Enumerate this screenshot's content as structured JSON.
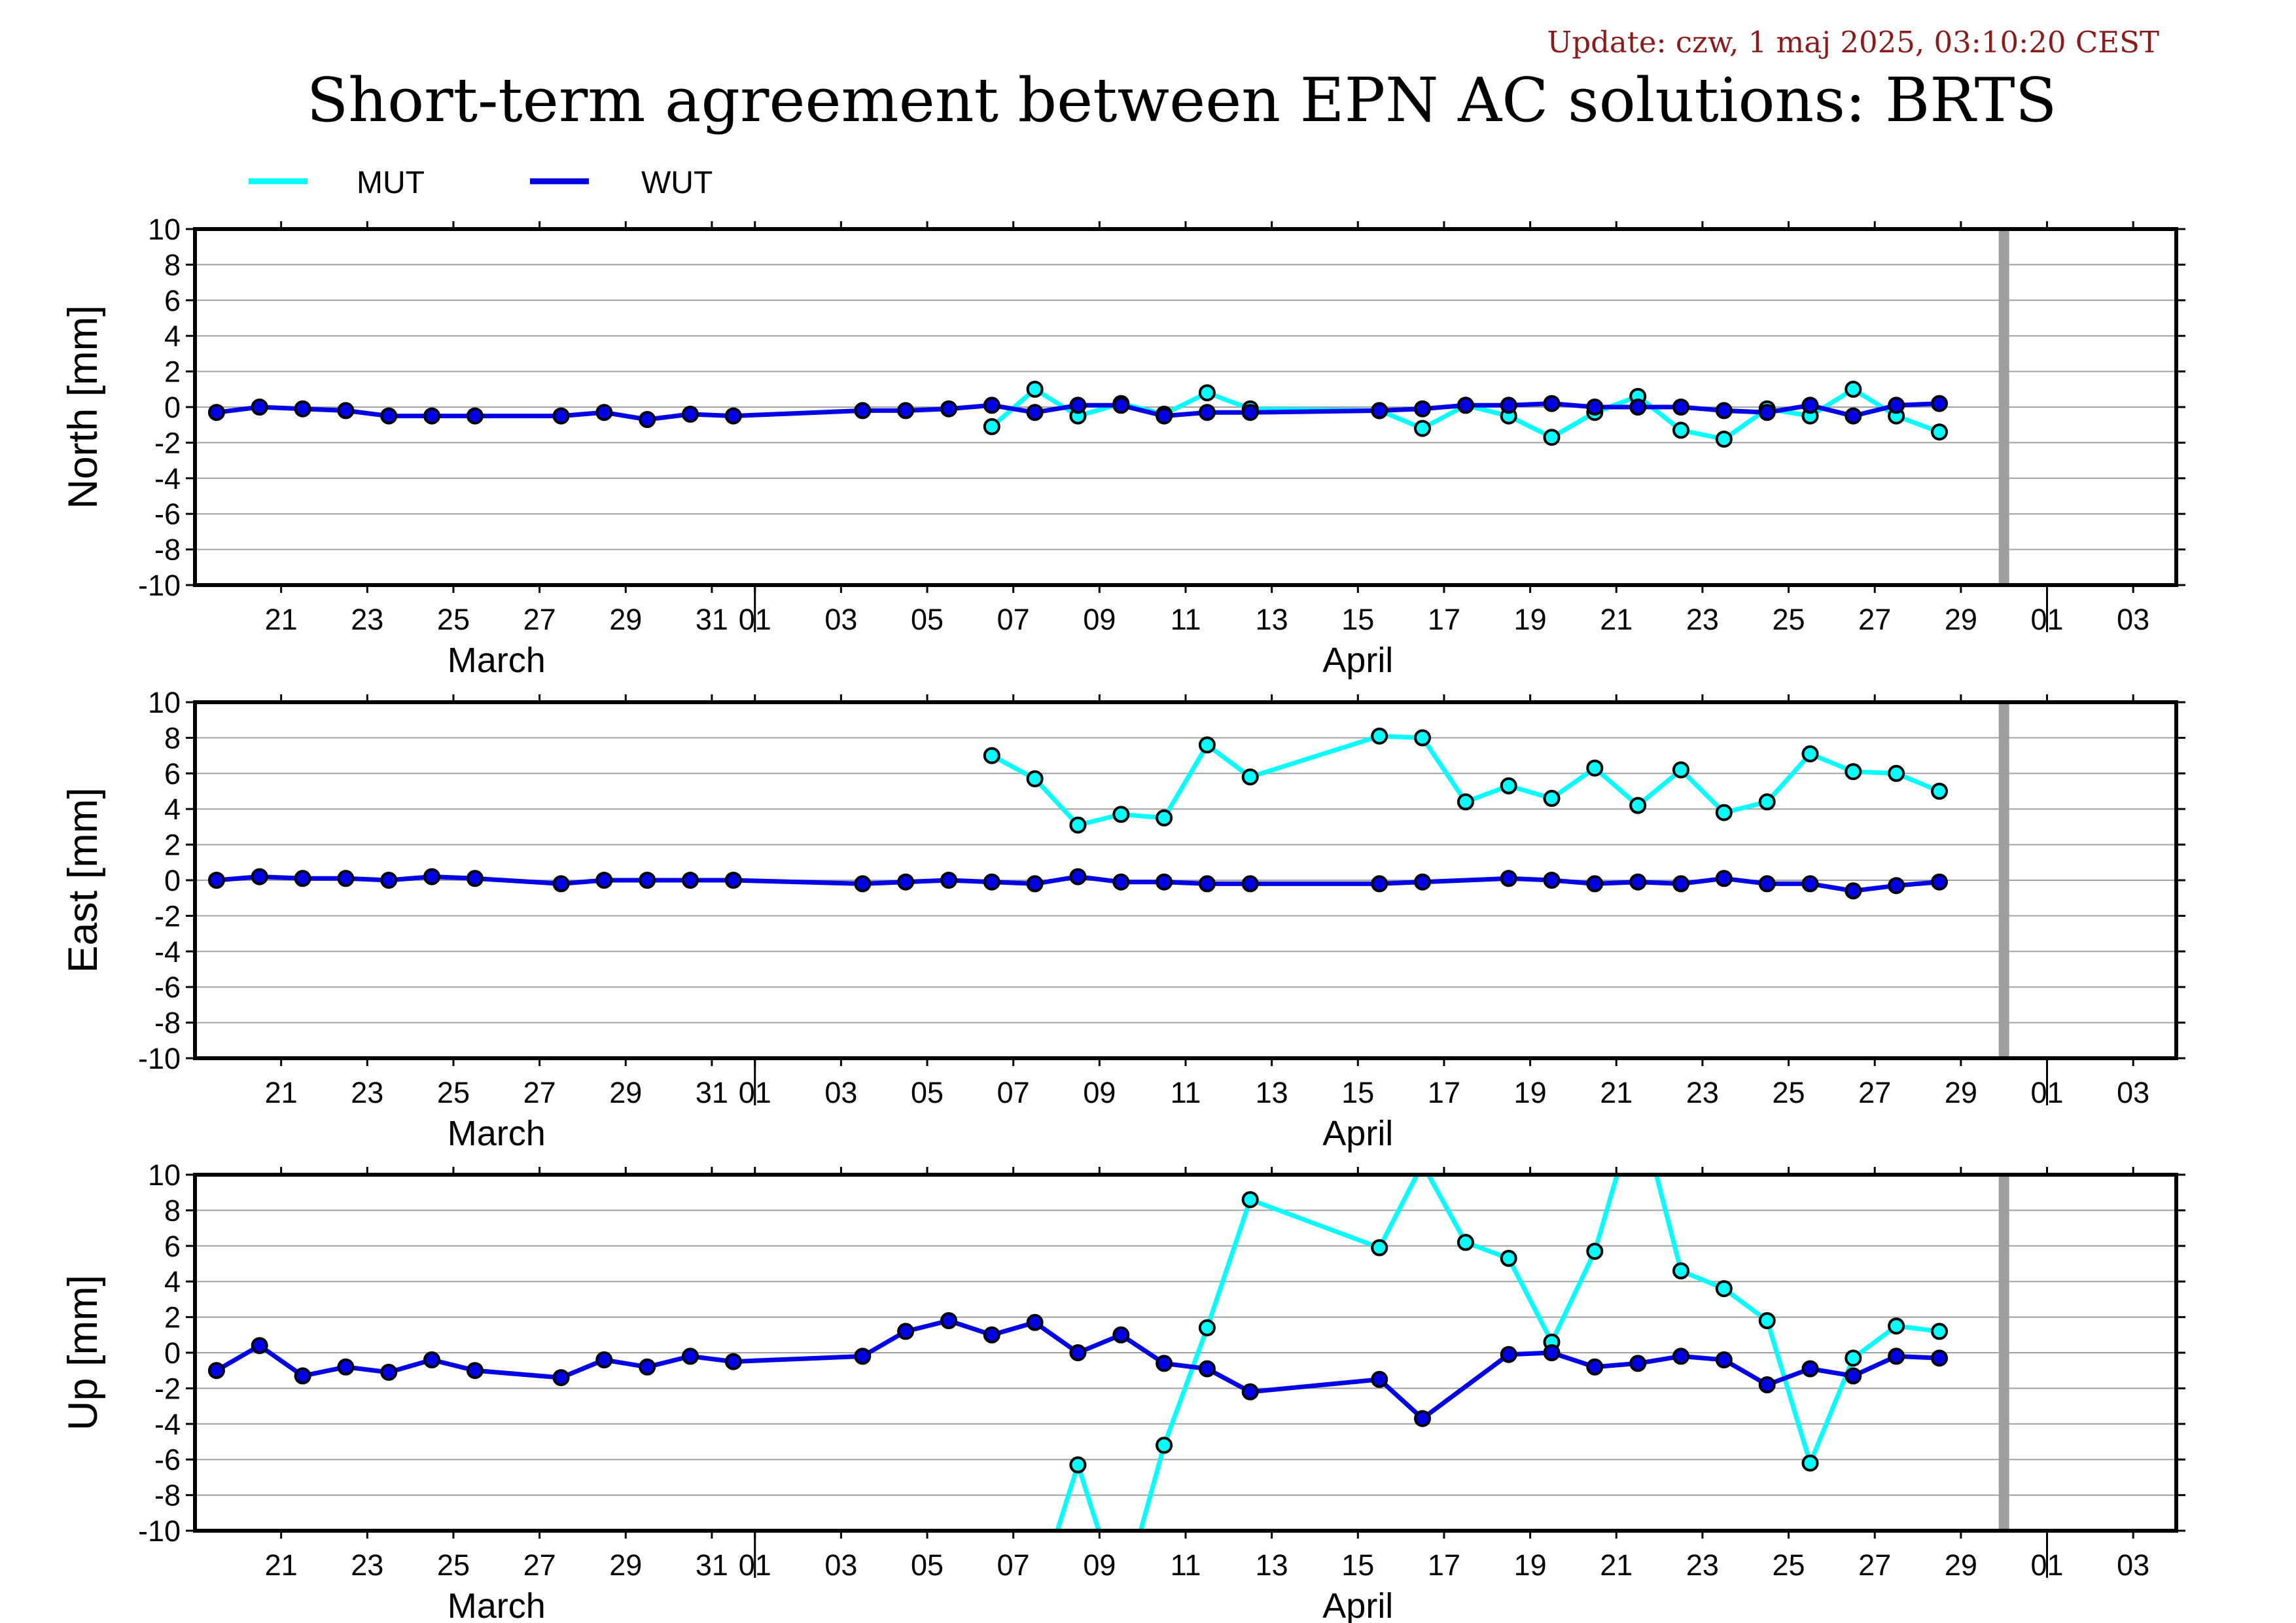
{
  "update_text": "Update: czw, 1 maj 2025, 03:10:20 CEST",
  "title": "Short-term agreement between EPN AC solutions: BRTS",
  "legend": [
    {
      "name": "MUT",
      "color": "#00ffff"
    },
    {
      "name": "WUT",
      "color": "#0000e6"
    }
  ],
  "colors": {
    "MUT": "#00ffff",
    "WUT": "#0000e6",
    "marker_edge": "#000000",
    "future_bar": "#9e9e9e",
    "grid": "#a0a0a0"
  },
  "chart_data": {
    "type": "line",
    "x_unit": "date (2025)",
    "xlim": [
      "2025-03-19",
      "2025-05-04"
    ],
    "ylim": [
      -10,
      10
    ],
    "y_ticks": [
      10,
      8,
      6,
      4,
      2,
      0,
      -2,
      -4,
      -6,
      -8,
      -10
    ],
    "y_tick_labels": [
      "10",
      "8",
      "6",
      "4",
      "2",
      "0",
      "-2",
      "-4",
      "-6",
      "-8",
      "-10"
    ],
    "x_ticks": [
      {
        "label": "21",
        "date": "2025-03-21"
      },
      {
        "label": "23",
        "date": "2025-03-23"
      },
      {
        "label": "25",
        "date": "2025-03-25"
      },
      {
        "label": "27",
        "date": "2025-03-27"
      },
      {
        "label": "29",
        "date": "2025-03-29"
      },
      {
        "label": "31",
        "date": "2025-03-31"
      },
      {
        "label": "01",
        "date": "2025-04-01"
      },
      {
        "label": "03",
        "date": "2025-04-03"
      },
      {
        "label": "05",
        "date": "2025-04-05"
      },
      {
        "label": "07",
        "date": "2025-04-07"
      },
      {
        "label": "09",
        "date": "2025-04-09"
      },
      {
        "label": "11",
        "date": "2025-04-11"
      },
      {
        "label": "13",
        "date": "2025-04-13"
      },
      {
        "label": "15",
        "date": "2025-04-15"
      },
      {
        "label": "17",
        "date": "2025-04-17"
      },
      {
        "label": "19",
        "date": "2025-04-19"
      },
      {
        "label": "21",
        "date": "2025-04-21"
      },
      {
        "label": "23",
        "date": "2025-04-23"
      },
      {
        "label": "25",
        "date": "2025-04-25"
      },
      {
        "label": "27",
        "date": "2025-04-27"
      },
      {
        "label": "29",
        "date": "2025-04-29"
      },
      {
        "label": "01",
        "date": "2025-05-01"
      },
      {
        "label": "03",
        "date": "2025-05-03"
      }
    ],
    "month_separators": [
      "2025-04-01",
      "2025-05-01"
    ],
    "months": [
      {
        "label": "March",
        "date": "2025-03-26"
      },
      {
        "label": "April",
        "date": "2025-04-15"
      }
    ],
    "future_marker_date": "2025-04-30",
    "panels": [
      {
        "ylabel": "North [mm]",
        "series": [
          {
            "name": "WUT",
            "points": [
              [
                "2025-03-19T12:00",
                -0.3
              ],
              [
                "2025-03-20T12:00",
                0.0
              ],
              [
                "2025-03-21T12:00",
                -0.1
              ],
              [
                "2025-03-22T12:00",
                -0.2
              ],
              [
                "2025-03-23T12:00",
                -0.5
              ],
              [
                "2025-03-24T12:00",
                -0.5
              ],
              [
                "2025-03-25T12:00",
                -0.5
              ],
              [
                "2025-03-27T12:00",
                -0.5
              ],
              [
                "2025-03-28T12:00",
                -0.3
              ],
              [
                "2025-03-29T12:00",
                -0.7
              ],
              [
                "2025-03-30T12:00",
                -0.4
              ],
              [
                "2025-03-31T12:00",
                -0.5
              ],
              [
                "2025-04-03T12:00",
                -0.2
              ],
              [
                "2025-04-04T12:00",
                -0.2
              ],
              [
                "2025-04-05T12:00",
                -0.1
              ],
              [
                "2025-04-06T12:00",
                0.1
              ],
              [
                "2025-04-07T12:00",
                -0.3
              ],
              [
                "2025-04-08T12:00",
                0.1
              ],
              [
                "2025-04-09T12:00",
                0.1
              ],
              [
                "2025-04-10T12:00",
                -0.5
              ],
              [
                "2025-04-11T12:00",
                -0.3
              ],
              [
                "2025-04-12T12:00",
                -0.3
              ],
              [
                "2025-04-15T12:00",
                -0.2
              ],
              [
                "2025-04-16T12:00",
                -0.1
              ],
              [
                "2025-04-17T12:00",
                0.1
              ],
              [
                "2025-04-18T12:00",
                0.1
              ],
              [
                "2025-04-19T12:00",
                0.2
              ],
              [
                "2025-04-20T12:00",
                0.0
              ],
              [
                "2025-04-21T12:00",
                0.0
              ],
              [
                "2025-04-22T12:00",
                0.0
              ],
              [
                "2025-04-23T12:00",
                -0.2
              ],
              [
                "2025-04-24T12:00",
                -0.3
              ],
              [
                "2025-04-25T12:00",
                0.1
              ],
              [
                "2025-04-26T12:00",
                -0.5
              ],
              [
                "2025-04-27T12:00",
                0.1
              ],
              [
                "2025-04-28T12:00",
                0.2
              ]
            ]
          },
          {
            "name": "MUT",
            "points": [
              [
                "2025-04-06T12:00",
                -1.1
              ],
              [
                "2025-04-07T12:00",
                1.0
              ],
              [
                "2025-04-08T12:00",
                -0.5
              ],
              [
                "2025-04-09T12:00",
                0.2
              ],
              [
                "2025-04-10T12:00",
                -0.4
              ],
              [
                "2025-04-11T12:00",
                0.8
              ],
              [
                "2025-04-12T12:00",
                -0.1
              ],
              [
                "2025-04-15T12:00",
                -0.2
              ],
              [
                "2025-04-16T12:00",
                -1.2
              ],
              [
                "2025-04-17T12:00",
                0.1
              ],
              [
                "2025-04-18T12:00",
                -0.5
              ],
              [
                "2025-04-19T12:00",
                -1.7
              ],
              [
                "2025-04-20T12:00",
                -0.3
              ],
              [
                "2025-04-21T12:00",
                0.6
              ],
              [
                "2025-04-22T12:00",
                -1.3
              ],
              [
                "2025-04-23T12:00",
                -1.8
              ],
              [
                "2025-04-24T12:00",
                -0.1
              ],
              [
                "2025-04-25T12:00",
                -0.5
              ],
              [
                "2025-04-26T12:00",
                1.0
              ],
              [
                "2025-04-27T12:00",
                -0.5
              ],
              [
                "2025-04-28T12:00",
                -1.4
              ]
            ]
          }
        ]
      },
      {
        "ylabel": "East [mm]",
        "series": [
          {
            "name": "WUT",
            "points": [
              [
                "2025-03-19T12:00",
                0.0
              ],
              [
                "2025-03-20T12:00",
                0.2
              ],
              [
                "2025-03-21T12:00",
                0.1
              ],
              [
                "2025-03-22T12:00",
                0.1
              ],
              [
                "2025-03-23T12:00",
                0.0
              ],
              [
                "2025-03-24T12:00",
                0.2
              ],
              [
                "2025-03-25T12:00",
                0.1
              ],
              [
                "2025-03-27T12:00",
                -0.2
              ],
              [
                "2025-03-28T12:00",
                0.0
              ],
              [
                "2025-03-29T12:00",
                0.0
              ],
              [
                "2025-03-30T12:00",
                0.0
              ],
              [
                "2025-03-31T12:00",
                0.0
              ],
              [
                "2025-04-03T12:00",
                -0.2
              ],
              [
                "2025-04-04T12:00",
                -0.1
              ],
              [
                "2025-04-05T12:00",
                0.0
              ],
              [
                "2025-04-06T12:00",
                -0.1
              ],
              [
                "2025-04-07T12:00",
                -0.2
              ],
              [
                "2025-04-08T12:00",
                0.2
              ],
              [
                "2025-04-09T12:00",
                -0.1
              ],
              [
                "2025-04-10T12:00",
                -0.1
              ],
              [
                "2025-04-11T12:00",
                -0.2
              ],
              [
                "2025-04-12T12:00",
                -0.2
              ],
              [
                "2025-04-15T12:00",
                -0.2
              ],
              [
                "2025-04-16T12:00",
                -0.1
              ],
              [
                "2025-04-18T12:00",
                0.1
              ],
              [
                "2025-04-19T12:00",
                0.0
              ],
              [
                "2025-04-20T12:00",
                -0.2
              ],
              [
                "2025-04-21T12:00",
                -0.1
              ],
              [
                "2025-04-22T12:00",
                -0.2
              ],
              [
                "2025-04-23T12:00",
                0.1
              ],
              [
                "2025-04-24T12:00",
                -0.2
              ],
              [
                "2025-04-25T12:00",
                -0.2
              ],
              [
                "2025-04-26T12:00",
                -0.6
              ],
              [
                "2025-04-27T12:00",
                -0.3
              ],
              [
                "2025-04-28T12:00",
                -0.1
              ]
            ]
          },
          {
            "name": "MUT",
            "points": [
              [
                "2025-04-06T12:00",
                7.0
              ],
              [
                "2025-04-07T12:00",
                5.7
              ],
              [
                "2025-04-08T12:00",
                3.1
              ],
              [
                "2025-04-09T12:00",
                3.7
              ],
              [
                "2025-04-10T12:00",
                3.5
              ],
              [
                "2025-04-11T12:00",
                7.6
              ],
              [
                "2025-04-12T12:00",
                5.8
              ],
              [
                "2025-04-15T12:00",
                8.1
              ],
              [
                "2025-04-16T12:00",
                8.0
              ],
              [
                "2025-04-17T12:00",
                4.4
              ],
              [
                "2025-04-18T12:00",
                5.3
              ],
              [
                "2025-04-19T12:00",
                4.6
              ],
              [
                "2025-04-20T12:00",
                6.3
              ],
              [
                "2025-04-21T12:00",
                4.2
              ],
              [
                "2025-04-22T12:00",
                6.2
              ],
              [
                "2025-04-23T12:00",
                3.8
              ],
              [
                "2025-04-24T12:00",
                4.4
              ],
              [
                "2025-04-25T12:00",
                7.1
              ],
              [
                "2025-04-26T12:00",
                6.1
              ],
              [
                "2025-04-27T12:00",
                6.0
              ],
              [
                "2025-04-28T12:00",
                5.0
              ]
            ]
          }
        ]
      },
      {
        "ylabel": "Up [mm]",
        "series": [
          {
            "name": "WUT",
            "points": [
              [
                "2025-03-19T12:00",
                -1.0
              ],
              [
                "2025-03-20T12:00",
                0.4
              ],
              [
                "2025-03-21T12:00",
                -1.3
              ],
              [
                "2025-03-22T12:00",
                -0.8
              ],
              [
                "2025-03-23T12:00",
                -1.1
              ],
              [
                "2025-03-24T12:00",
                -0.4
              ],
              [
                "2025-03-25T12:00",
                -1.0
              ],
              [
                "2025-03-27T12:00",
                -1.4
              ],
              [
                "2025-03-28T12:00",
                -0.4
              ],
              [
                "2025-03-29T12:00",
                -0.8
              ],
              [
                "2025-03-30T12:00",
                -0.2
              ],
              [
                "2025-03-31T12:00",
                -0.5
              ],
              [
                "2025-04-03T12:00",
                -0.2
              ],
              [
                "2025-04-04T12:00",
                1.2
              ],
              [
                "2025-04-05T12:00",
                1.8
              ],
              [
                "2025-04-06T12:00",
                1.0
              ],
              [
                "2025-04-07T12:00",
                1.7
              ],
              [
                "2025-04-08T12:00",
                0.0
              ],
              [
                "2025-04-09T12:00",
                1.0
              ],
              [
                "2025-04-10T12:00",
                -0.6
              ],
              [
                "2025-04-11T12:00",
                -0.9
              ],
              [
                "2025-04-12T12:00",
                -2.2
              ],
              [
                "2025-04-15T12:00",
                -1.5
              ],
              [
                "2025-04-16T12:00",
                -3.7
              ],
              [
                "2025-04-18T12:00",
                -0.1
              ],
              [
                "2025-04-19T12:00",
                0.0
              ],
              [
                "2025-04-20T12:00",
                -0.8
              ],
              [
                "2025-04-21T12:00",
                -0.6
              ],
              [
                "2025-04-22T12:00",
                -0.2
              ],
              [
                "2025-04-23T12:00",
                -0.4
              ],
              [
                "2025-04-24T12:00",
                -1.8
              ],
              [
                "2025-04-25T12:00",
                -0.9
              ],
              [
                "2025-04-26T12:00",
                -1.3
              ],
              [
                "2025-04-27T12:00",
                -0.2
              ],
              [
                "2025-04-28T12:00",
                -0.3
              ]
            ]
          },
          {
            "name": "MUT",
            "points": [
              [
                "2025-04-07T12:00",
                -14.0
              ],
              [
                "2025-04-08T12:00",
                -6.3
              ],
              [
                "2025-04-09T12:00",
                -14.0
              ],
              [
                "2025-04-10T12:00",
                -5.2
              ],
              [
                "2025-04-11T12:00",
                1.4
              ],
              [
                "2025-04-12T12:00",
                8.6
              ],
              [
                "2025-04-15T12:00",
                5.9
              ],
              [
                "2025-04-16T12:00",
                10.6
              ],
              [
                "2025-04-17T12:00",
                6.2
              ],
              [
                "2025-04-18T12:00",
                5.3
              ],
              [
                "2025-04-19T12:00",
                0.6
              ],
              [
                "2025-04-20T12:00",
                5.7
              ],
              [
                "2025-04-21T12:00",
                14.0
              ],
              [
                "2025-04-22T12:00",
                4.6
              ],
              [
                "2025-04-23T12:00",
                3.6
              ],
              [
                "2025-04-24T12:00",
                1.8
              ],
              [
                "2025-04-25T12:00",
                -6.2
              ],
              [
                "2025-04-26T12:00",
                -0.3
              ],
              [
                "2025-04-27T12:00",
                1.5
              ],
              [
                "2025-04-28T12:00",
                1.2
              ]
            ]
          }
        ]
      }
    ]
  }
}
